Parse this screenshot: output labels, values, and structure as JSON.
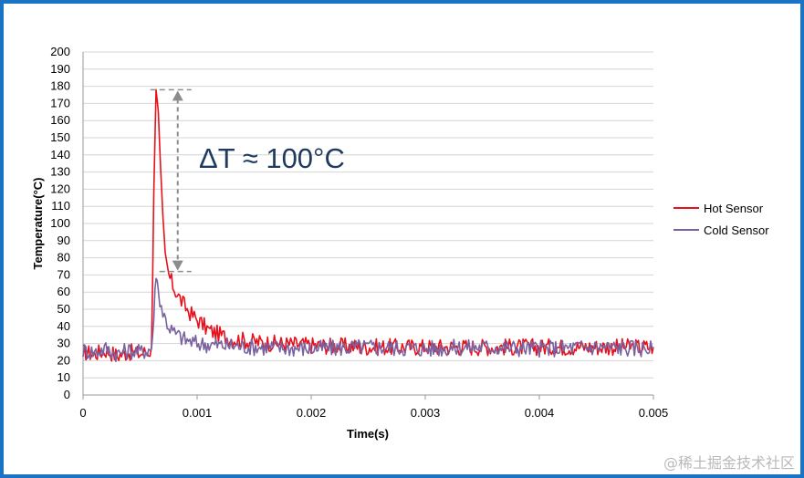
{
  "chart_data": {
    "type": "line",
    "title": "",
    "xlabel": "Time(s)",
    "ylabel": "Temperature(°C)",
    "xlim": [
      0,
      0.005
    ],
    "ylim": [
      0,
      200
    ],
    "x_ticks": [
      "0",
      "0.001",
      "0.002",
      "0.003",
      "0.004",
      "0.005"
    ],
    "y_ticks": [
      "0",
      "10",
      "20",
      "30",
      "40",
      "50",
      "60",
      "70",
      "80",
      "90",
      "100",
      "110",
      "120",
      "130",
      "140",
      "150",
      "160",
      "170",
      "180",
      "190",
      "200"
    ],
    "grid": "horizontal",
    "legend_position": "right",
    "series": [
      {
        "name": "Hot Sensor",
        "color": "#e8101a",
        "x": [
          0,
          0.0001,
          0.0002,
          0.0003,
          0.0004,
          0.0005,
          0.0006,
          0.00062,
          0.00064,
          0.00066,
          0.00068,
          0.0007,
          0.00072,
          0.00075,
          0.0008,
          0.00085,
          0.0009,
          0.00095,
          0.001,
          0.0011,
          0.0012,
          0.0013,
          0.0014,
          0.0015,
          0.0017,
          0.002,
          0.0025,
          0.003,
          0.0035,
          0.004,
          0.0045,
          0.005
        ],
        "values": [
          25,
          24,
          26,
          23,
          25,
          24,
          26,
          120,
          178,
          165,
          130,
          100,
          80,
          70,
          62,
          56,
          51,
          47,
          44,
          38,
          35,
          33,
          32,
          31,
          30,
          29,
          28,
          28,
          28,
          28,
          28,
          28
        ]
      },
      {
        "name": "Cold Sensor",
        "color": "#7a62a0",
        "x": [
          0,
          0.0001,
          0.0002,
          0.0003,
          0.0004,
          0.0005,
          0.0006,
          0.00062,
          0.00064,
          0.00066,
          0.0007,
          0.00075,
          0.0008,
          0.0009,
          0.001,
          0.0012,
          0.0015,
          0.002,
          0.0025,
          0.003,
          0.0035,
          0.004,
          0.0045,
          0.005
        ],
        "values": [
          26,
          25,
          27,
          24,
          26,
          25,
          27,
          45,
          72,
          60,
          48,
          40,
          36,
          32,
          30,
          29,
          28,
          27,
          28,
          27,
          28,
          27,
          28,
          27
        ]
      }
    ],
    "annotations": [
      {
        "text": "ΔT ≈ 100°C",
        "arrow_from_y": 178,
        "arrow_to_y": 72,
        "at_x": 0.00083
      }
    ]
  },
  "watermark": "@稀土掘金技术社区"
}
